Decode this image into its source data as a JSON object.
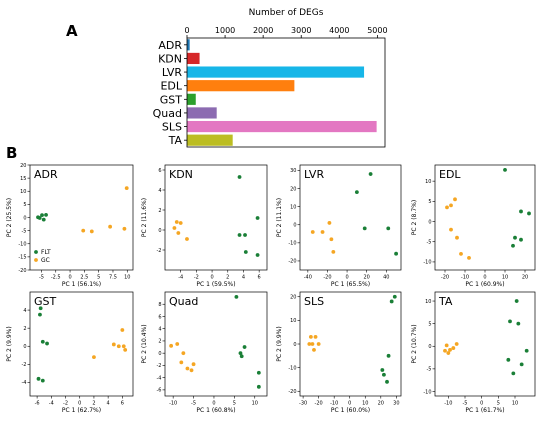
{
  "panel_labels": {
    "a": "A",
    "b": "B"
  },
  "colors": {
    "FLT": "#1a7f37",
    "GC": "#f5a623"
  },
  "chart_data": [
    {
      "type": "bar",
      "orientation": "horizontal",
      "title": "Number of DEGs",
      "xlim": [
        0,
        5200
      ],
      "xticks": [
        0,
        1000,
        2000,
        3000,
        4000,
        5000
      ],
      "categories": [
        "ADR",
        "KDN",
        "LVR",
        "EDL",
        "GST",
        "Quad",
        "SLS",
        "TA"
      ],
      "values": [
        70,
        330,
        4650,
        2820,
        230,
        780,
        4980,
        1200
      ],
      "colors": [
        "#1f77b4",
        "#d62728",
        "#17b6e8",
        "#ff7f0e",
        "#2ca02c",
        "#8c6bb1",
        "#e377c2",
        "#bcbd22"
      ]
    },
    {
      "type": "scatter",
      "title": "ADR",
      "xlabel": "PC 1 (56.1%)",
      "ylabel": "PC 2 (25.5%)",
      "xlim": [
        -7,
        11
      ],
      "ylim": [
        -20,
        20
      ],
      "xticks": [
        -5,
        -2.5,
        0,
        2.5,
        5,
        7.5,
        10
      ],
      "yticks": [
        -20,
        -15,
        -10,
        -5,
        0,
        5,
        10,
        15,
        20
      ],
      "legend": {
        "position": "lower-left",
        "entries": [
          "FLT",
          "GC"
        ]
      },
      "series": [
        {
          "name": "FLT",
          "points": [
            [
              -5.3,
              -0.2
            ],
            [
              -4.9,
              0.9
            ],
            [
              -4.6,
              -0.8
            ],
            [
              -4.2,
              1.0
            ],
            [
              -5.6,
              0.1
            ]
          ]
        },
        {
          "name": "GC",
          "points": [
            [
              9.9,
              11.2
            ],
            [
              2.3,
              -5.0
            ],
            [
              3.8,
              -5.3
            ],
            [
              7.0,
              -3.5
            ],
            [
              9.5,
              -4.3
            ]
          ]
        }
      ]
    },
    {
      "type": "scatter",
      "title": "KDN",
      "xlabel": "PC 1 (59.5%)",
      "ylabel": "PC 2 (11.6%)",
      "xlim": [
        -6,
        7
      ],
      "ylim": [
        -4,
        6.5
      ],
      "xticks": [
        -4,
        -2,
        0,
        2,
        4,
        6
      ],
      "yticks": [
        -2,
        0,
        2,
        4,
        6
      ],
      "series": [
        {
          "name": "FLT",
          "points": [
            [
              3.5,
              5.3
            ],
            [
              3.5,
              -0.5
            ],
            [
              4.2,
              -0.5
            ],
            [
              5.8,
              1.2
            ],
            [
              4.3,
              -2.2
            ],
            [
              5.8,
              -2.5
            ]
          ]
        },
        {
          "name": "GC",
          "points": [
            [
              -4.8,
              0.2
            ],
            [
              -4.5,
              0.8
            ],
            [
              -4.3,
              -0.3
            ],
            [
              -4.0,
              0.7
            ],
            [
              -3.2,
              -0.9
            ]
          ]
        }
      ]
    },
    {
      "type": "scatter",
      "title": "LVR",
      "xlabel": "PC 1 (65.5%)",
      "ylabel": "PC 2 (11.1%)",
      "xlim": [
        -48,
        55
      ],
      "ylim": [
        -25,
        33
      ],
      "xticks": [
        -40,
        -20,
        0,
        20,
        40
      ],
      "yticks": [
        -20,
        -10,
        0,
        10,
        20,
        30
      ],
      "series": [
        {
          "name": "FLT",
          "points": [
            [
              24,
              28
            ],
            [
              10,
              18
            ],
            [
              18,
              -2
            ],
            [
              42,
              -2
            ],
            [
              50,
              -16
            ]
          ]
        },
        {
          "name": "GC",
          "points": [
            [
              -35,
              -4
            ],
            [
              -25,
              -4
            ],
            [
              -18,
              1
            ],
            [
              -16,
              -8
            ],
            [
              -14,
              -15
            ]
          ]
        }
      ]
    },
    {
      "type": "scatter",
      "title": "EDL",
      "xlabel": "PC 1 (60.9%)",
      "ylabel": "PC 2 (8.7%)",
      "xlim": [
        -25,
        25
      ],
      "ylim": [
        -12,
        14
      ],
      "xticks": [
        -20,
        -10,
        0,
        10,
        20
      ],
      "yticks": [
        -10,
        -5,
        0,
        5,
        10
      ],
      "series": [
        {
          "name": "FLT",
          "points": [
            [
              10,
              12.8
            ],
            [
              18,
              2.5
            ],
            [
              22,
              2
            ],
            [
              15,
              -4
            ],
            [
              18,
              -4.5
            ],
            [
              14,
              -6
            ]
          ]
        },
        {
          "name": "GC",
          "points": [
            [
              -19,
              3.5
            ],
            [
              -17,
              4
            ],
            [
              -15,
              5.5
            ],
            [
              -17,
              -2
            ],
            [
              -14,
              -4
            ],
            [
              -12,
              -8
            ],
            [
              -8,
              -9
            ]
          ]
        }
      ]
    },
    {
      "type": "scatter",
      "title": "GST",
      "xlabel": "PC 1 (62.7%)",
      "ylabel": "PC 2 (9.9%)",
      "xlim": [
        -7,
        7.5
      ],
      "ylim": [
        -5.5,
        6
      ],
      "xticks": [
        -6,
        -4,
        -2,
        0,
        2,
        4,
        6
      ],
      "yticks": [
        -4,
        -2,
        0,
        2,
        4
      ],
      "series": [
        {
          "name": "FLT",
          "points": [
            [
              -5.5,
              4.2
            ],
            [
              -5.6,
              3.5
            ],
            [
              -5.2,
              0.5
            ],
            [
              -4.6,
              0.3
            ],
            [
              -5.8,
              -3.6
            ],
            [
              -5.2,
              -3.8
            ]
          ]
        },
        {
          "name": "GC",
          "points": [
            [
              2.0,
              -1.2
            ],
            [
              4.8,
              0.2
            ],
            [
              5.5,
              0
            ],
            [
              6.2,
              0
            ],
            [
              6.0,
              1.8
            ],
            [
              6.4,
              -0.4
            ]
          ]
        }
      ]
    },
    {
      "type": "scatter",
      "title": "Quad",
      "xlabel": "PC 1 (60.8%)",
      "ylabel": "PC 2 (10.4%)",
      "xlim": [
        -12,
        13
      ],
      "ylim": [
        -7,
        10
      ],
      "xticks": [
        -10,
        -5,
        0,
        5,
        10
      ],
      "yticks": [
        -6,
        -4,
        -2,
        0,
        2,
        4,
        6,
        8
      ],
      "series": [
        {
          "name": "FLT",
          "points": [
            [
              5.5,
              9.2
            ],
            [
              6.5,
              0
            ],
            [
              7.5,
              1
            ],
            [
              6.8,
              -0.5
            ],
            [
              11.0,
              -3.2
            ],
            [
              11.0,
              -5.5
            ]
          ]
        },
        {
          "name": "GC",
          "points": [
            [
              -10.5,
              1.2
            ],
            [
              -9,
              1.5
            ],
            [
              -8,
              -1.5
            ],
            [
              -7.5,
              0
            ],
            [
              -6.5,
              -2.5
            ],
            [
              -5.5,
              -2.8
            ],
            [
              -5.0,
              -1.8
            ]
          ]
        }
      ]
    },
    {
      "type": "scatter",
      "title": "SLS",
      "xlabel": "PC 1 (60.0%)",
      "ylabel": "PC 2 (9.9%)",
      "xlim": [
        -32,
        33
      ],
      "ylim": [
        -22,
        22
      ],
      "xticks": [
        -30,
        -20,
        -10,
        0,
        10,
        20,
        30
      ],
      "yticks": [
        -20,
        -10,
        0,
        10,
        20
      ],
      "series": [
        {
          "name": "FLT",
          "points": [
            [
              29,
              20
            ],
            [
              27,
              18
            ],
            [
              25,
              -5
            ],
            [
              21,
              -11
            ],
            [
              22,
              -13
            ],
            [
              24,
              -16
            ]
          ]
        },
        {
          "name": "GC",
          "points": [
            [
              -25,
              3
            ],
            [
              -22,
              3
            ],
            [
              -24,
              0
            ],
            [
              -26,
              0
            ],
            [
              -20,
              0
            ],
            [
              -23,
              -2.5
            ]
          ]
        }
      ]
    },
    {
      "type": "scatter",
      "title": "TA",
      "xlabel": "PC 1 (61.7%)",
      "ylabel": "PC 2 (10.7%)",
      "xlim": [
        -14,
        16
      ],
      "ylim": [
        -11,
        12
      ],
      "xticks": [
        -10,
        -5,
        0,
        5,
        10
      ],
      "yticks": [
        -10,
        -5,
        0,
        5,
        10
      ],
      "series": [
        {
          "name": "FLT",
          "points": [
            [
              10.5,
              10
            ],
            [
              8.5,
              5.5
            ],
            [
              11,
              5
            ],
            [
              9.5,
              -6
            ],
            [
              12,
              -4
            ],
            [
              8,
              -3
            ],
            [
              13.5,
              -1
            ]
          ]
        },
        {
          "name": "GC",
          "points": [
            [
              -11,
              -1
            ],
            [
              -10.5,
              0.2
            ],
            [
              -10,
              -1.5
            ],
            [
              -9.5,
              -0.8
            ],
            [
              -8.5,
              -0.4
            ],
            [
              -7.5,
              0.5
            ]
          ]
        }
      ]
    }
  ]
}
